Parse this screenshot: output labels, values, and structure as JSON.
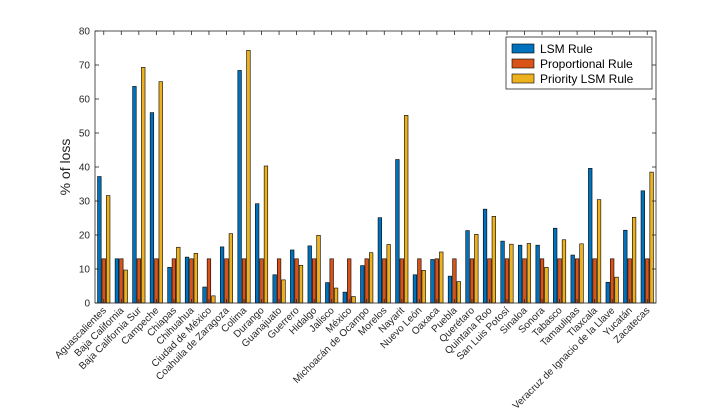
{
  "chart_data": {
    "type": "bar",
    "title": "",
    "xlabel": "",
    "ylabel": "% of loss",
    "ylim": [
      0,
      80
    ],
    "yticks": [
      0,
      10,
      20,
      30,
      40,
      50,
      60,
      70,
      80
    ],
    "grid": false,
    "legend_position": "top-right",
    "categories": [
      "Aguascalientes",
      "Baja California",
      "Baja California Sur",
      "Campeche",
      "Chiapas",
      "Chihuahua",
      "Ciudad de México",
      "Coahuila de Zaragoza",
      "Colima",
      "Durango",
      "Guanajuato",
      "Guerrero",
      "Hidalgo",
      "Jalisco",
      "México",
      "Michoacán de Ocampo",
      "Morelos",
      "Nayarit",
      "Nuevo León",
      "Oaxaca",
      "Puebla",
      "Querétaro",
      "Quintana Roo",
      "San Luis Potosí",
      "Sinaloa",
      "Sonora",
      "Tabasco",
      "Tamaulipas",
      "Tlaxcala",
      "Veracruz de Ignacio de la Llave",
      "Yucatán",
      "Zacatecas"
    ],
    "series": [
      {
        "name": "LSM Rule",
        "color": "#0072BD",
        "values": [
          37.2,
          13.0,
          63.7,
          56.0,
          10.5,
          13.5,
          4.7,
          16.5,
          68.4,
          29.2,
          8.3,
          15.6,
          16.8,
          6.0,
          3.2,
          11.0,
          25.1,
          42.2,
          8.3,
          12.8,
          7.9,
          21.3,
          27.6,
          18.2,
          17.0,
          17.0,
          22.0,
          14.1,
          39.6,
          6.1,
          21.4,
          33.0
        ]
      },
      {
        "name": "Proportional Rule",
        "color": "#D95319",
        "values": [
          13.0,
          13.0,
          13.0,
          13.0,
          13.0,
          13.0,
          13.0,
          13.0,
          13.0,
          13.0,
          13.0,
          13.0,
          13.0,
          13.0,
          13.0,
          13.0,
          13.0,
          13.0,
          13.0,
          13.0,
          13.0,
          13.0,
          13.0,
          13.0,
          13.0,
          13.0,
          13.0,
          13.0,
          13.0,
          13.0,
          13.0,
          13.0
        ]
      },
      {
        "name": "Priority LSM Rule",
        "color": "#EDB120",
        "values": [
          31.6,
          9.7,
          69.3,
          65.1,
          16.4,
          14.6,
          2.1,
          20.4,
          74.3,
          40.3,
          6.8,
          11.1,
          19.9,
          4.4,
          1.9,
          14.8,
          17.2,
          55.2,
          9.6,
          15.0,
          6.3,
          20.2,
          25.5,
          17.3,
          17.5,
          10.5,
          18.6,
          17.4,
          30.4,
          7.6,
          25.2,
          38.5
        ]
      }
    ]
  }
}
